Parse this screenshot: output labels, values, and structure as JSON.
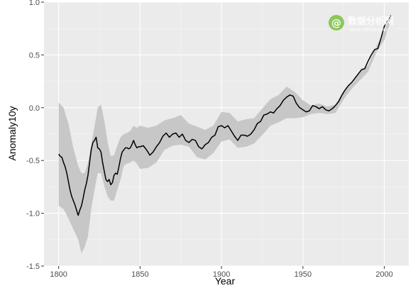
{
  "chart_data": {
    "type": "area",
    "xlabel": "Year",
    "ylabel": "Anomaly10y",
    "xlim": [
      1791,
      2015
    ],
    "ylim": [
      -1.5,
      1.0
    ],
    "x_ticks": [
      1800,
      1850,
      1900,
      1950,
      2000
    ],
    "y_ticks": [
      -1.5,
      -1.0,
      -0.5,
      0.0,
      0.5,
      1.0
    ],
    "x_tick_labels": [
      "1800",
      "1850",
      "1900",
      "1950",
      "2000"
    ],
    "y_tick_labels": [
      "-1.5",
      "-1.0",
      "-0.5",
      "0.0",
      "0.5",
      "1.0"
    ],
    "grid": true,
    "background": "#ebebeb",
    "band_color": "#c7c7c7",
    "line_color": "#000000",
    "series": [
      {
        "type": "line",
        "x": [
          1800,
          1801,
          1802,
          1803,
          1804,
          1805,
          1806,
          1807,
          1808,
          1809,
          1810,
          1811,
          1812,
          1813,
          1814,
          1815,
          1816,
          1817,
          1818,
          1819,
          1820,
          1821,
          1822,
          1823,
          1824,
          1825,
          1826,
          1827,
          1828,
          1829,
          1830,
          1831,
          1832,
          1833,
          1834,
          1835,
          1836,
          1837,
          1838,
          1839,
          1840,
          1841,
          1842,
          1843,
          1844,
          1845,
          1846,
          1847,
          1848,
          1849,
          1850,
          1852,
          1854,
          1856,
          1858,
          1860,
          1862,
          1864,
          1866,
          1868,
          1870,
          1872,
          1874,
          1876,
          1878,
          1880,
          1882,
          1884,
          1886,
          1888,
          1890,
          1892,
          1894,
          1896,
          1898,
          1900,
          1902,
          1904,
          1906,
          1908,
          1910,
          1912,
          1914,
          1916,
          1918,
          1920,
          1922,
          1924,
          1926,
          1928,
          1930,
          1932,
          1934,
          1936,
          1938,
          1940,
          1942,
          1944,
          1946,
          1948,
          1950,
          1952,
          1954,
          1956,
          1958,
          1960,
          1962,
          1964,
          1966,
          1968,
          1970,
          1972,
          1974,
          1976,
          1978,
          1980,
          1982,
          1984,
          1986,
          1988,
          1990,
          1992,
          1994,
          1996,
          1998,
          2000,
          2002,
          2004
        ],
        "y": [
          -0.44,
          -0.46,
          -0.47,
          -0.52,
          -0.56,
          -0.62,
          -0.7,
          -0.78,
          -0.84,
          -0.88,
          -0.92,
          -0.97,
          -1.02,
          -0.97,
          -0.93,
          -0.86,
          -0.78,
          -0.72,
          -0.64,
          -0.52,
          -0.4,
          -0.33,
          -0.31,
          -0.28,
          -0.38,
          -0.39,
          -0.42,
          -0.52,
          -0.6,
          -0.68,
          -0.7,
          -0.68,
          -0.73,
          -0.71,
          -0.64,
          -0.62,
          -0.63,
          -0.56,
          -0.48,
          -0.42,
          -0.4,
          -0.38,
          -0.38,
          -0.39,
          -0.38,
          -0.35,
          -0.31,
          -0.35,
          -0.38,
          -0.37,
          -0.37,
          -0.36,
          -0.4,
          -0.45,
          -0.42,
          -0.37,
          -0.33,
          -0.27,
          -0.24,
          -0.28,
          -0.25,
          -0.24,
          -0.28,
          -0.25,
          -0.31,
          -0.33,
          -0.3,
          -0.31,
          -0.37,
          -0.39,
          -0.35,
          -0.33,
          -0.28,
          -0.26,
          -0.18,
          -0.17,
          -0.19,
          -0.17,
          -0.22,
          -0.27,
          -0.31,
          -0.26,
          -0.26,
          -0.27,
          -0.25,
          -0.21,
          -0.15,
          -0.13,
          -0.07,
          -0.06,
          -0.04,
          -0.05,
          -0.01,
          0.02,
          0.07,
          0.1,
          0.12,
          0.11,
          0.04,
          0.0,
          -0.02,
          -0.04,
          -0.03,
          0.02,
          0.01,
          -0.01,
          0.01,
          -0.02,
          -0.03,
          -0.01,
          0.02,
          0.06,
          0.12,
          0.17,
          0.21,
          0.24,
          0.28,
          0.32,
          0.36,
          0.37,
          0.44,
          0.5,
          0.55,
          0.56,
          0.66,
          0.77,
          0.82,
          0.87
        ]
      },
      {
        "type": "band",
        "x": [
          1800,
          1803,
          1806,
          1809,
          1812,
          1814,
          1816,
          1818,
          1820,
          1822,
          1824,
          1826,
          1828,
          1830,
          1832,
          1834,
          1836,
          1838,
          1840,
          1842,
          1844,
          1846,
          1848,
          1850,
          1855,
          1860,
          1865,
          1870,
          1875,
          1880,
          1885,
          1890,
          1895,
          1900,
          1905,
          1910,
          1915,
          1920,
          1925,
          1930,
          1935,
          1940,
          1945,
          1950,
          1955,
          1960,
          1965,
          1970,
          1975,
          1980,
          1985,
          1990,
          1995,
          2000,
          2004
        ],
        "lower": [
          -0.93,
          -0.96,
          -1.05,
          -1.15,
          -1.25,
          -1.38,
          -1.32,
          -1.22,
          -0.96,
          -0.78,
          -0.62,
          -0.62,
          -0.74,
          -0.84,
          -0.88,
          -0.88,
          -0.78,
          -0.68,
          -0.55,
          -0.53,
          -0.52,
          -0.5,
          -0.53,
          -0.58,
          -0.57,
          -0.52,
          -0.4,
          -0.36,
          -0.35,
          -0.37,
          -0.47,
          -0.49,
          -0.43,
          -0.32,
          -0.3,
          -0.38,
          -0.37,
          -0.34,
          -0.26,
          -0.17,
          -0.14,
          -0.1,
          -0.1,
          -0.09,
          -0.06,
          -0.05,
          -0.06,
          -0.05,
          0.08,
          0.18,
          0.26,
          0.34,
          0.52,
          0.64,
          0.83
        ],
        "upper": [
          0.05,
          0.0,
          -0.15,
          -0.38,
          -0.55,
          -0.62,
          -0.62,
          -0.52,
          -0.35,
          -0.18,
          0.0,
          0.03,
          -0.12,
          -0.32,
          -0.46,
          -0.45,
          -0.36,
          -0.28,
          -0.25,
          -0.24,
          -0.22,
          -0.17,
          -0.19,
          -0.17,
          -0.19,
          -0.17,
          -0.12,
          -0.1,
          -0.07,
          -0.15,
          -0.18,
          -0.21,
          -0.17,
          -0.04,
          -0.05,
          -0.13,
          -0.11,
          -0.1,
          -0.01,
          0.08,
          0.12,
          0.2,
          0.15,
          0.07,
          0.02,
          0.04,
          0.01,
          0.03,
          0.16,
          0.23,
          0.34,
          0.4,
          0.58,
          0.72,
          0.9
        ]
      }
    ]
  },
  "watermark": {
    "cn_text": "数据分析网",
    "url_text": "www.afenxi.com",
    "color": "#7cc142"
  }
}
